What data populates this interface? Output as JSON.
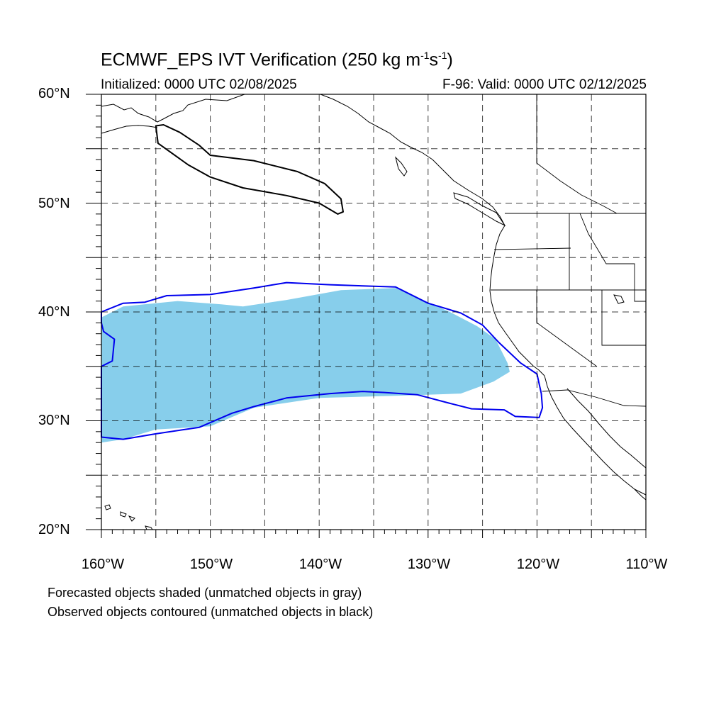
{
  "title": {
    "main": "ECMWF_EPS IVT Verification (250 kg m",
    "exp1": "-1",
    "s": "s",
    "exp2": "-1",
    "close": ")"
  },
  "subtitle": {
    "left": "Initialized: 0000 UTC 02/08/2025",
    "right": "F-96: Valid: 0000 UTC 02/12/2025"
  },
  "axes": {
    "lat_labels": [
      "60°N",
      "50°N",
      "40°N",
      "30°N",
      "20°N"
    ],
    "lon_labels": [
      "160°W",
      "150°W",
      "140°W",
      "130°W",
      "120°W",
      "110°W"
    ],
    "lon_range": [
      -160,
      -110
    ],
    "lat_range": [
      20,
      60
    ]
  },
  "notes": [
    "Forecasted objects shaded (unmatched objects in gray)",
    "Observed objects contoured (unmatched objects in black)"
  ],
  "colors": {
    "forecast_fill": "#87ceeb",
    "matched_contour": "#0000ee",
    "unmatched_contour": "#000000",
    "grid": "#000000",
    "coast": "#000000"
  },
  "map": {
    "projection": "cylindrical equidistant",
    "grid": "dashed every 5 degrees",
    "objects": [
      {
        "kind": "forecast-shaded",
        "label": "forecast-object",
        "lonlat": [
          [
            -160,
            39.5
          ],
          [
            -158,
            40.5
          ],
          [
            -153,
            41
          ],
          [
            -149,
            40.7
          ],
          [
            -147,
            40.5
          ],
          [
            -143,
            41.1
          ],
          [
            -138,
            42
          ],
          [
            -133,
            42.2
          ],
          [
            -128,
            40
          ],
          [
            -125.5,
            38.7
          ],
          [
            -123.8,
            37.5
          ],
          [
            -122.7,
            35.3
          ],
          [
            -122.5,
            34.5
          ],
          [
            -124,
            33.6
          ],
          [
            -127,
            32.5
          ],
          [
            -133,
            32.3
          ],
          [
            -140,
            32.1
          ],
          [
            -146,
            31.2
          ],
          [
            -150,
            29.5
          ],
          [
            -155,
            29.2
          ],
          [
            -158,
            28.3
          ],
          [
            -160,
            28
          ]
        ]
      },
      {
        "kind": "observed-contour-matched",
        "label": "observed-object-matched",
        "lonlat": [
          [
            -160,
            40
          ],
          [
            -158,
            40.8
          ],
          [
            -156,
            40.9
          ],
          [
            -154,
            41.5
          ],
          [
            -150,
            41.6
          ],
          [
            -146,
            42.2
          ],
          [
            -143,
            42.7
          ],
          [
            -139,
            42.5
          ],
          [
            -136,
            42.4
          ],
          [
            -133,
            42.3
          ],
          [
            -130,
            40.8
          ],
          [
            -127,
            39.9
          ],
          [
            -125,
            38.8
          ],
          [
            -123.5,
            37.2
          ],
          [
            -121.5,
            35.3
          ],
          [
            -120,
            34.3
          ],
          [
            -119.6,
            32.5
          ],
          [
            -119.5,
            31.2
          ],
          [
            -119.8,
            30.3
          ],
          [
            -122,
            30.4
          ],
          [
            -123,
            31
          ],
          [
            -126,
            31.1
          ],
          [
            -128,
            31.6
          ],
          [
            -131,
            32.4
          ],
          [
            -134,
            32.6
          ],
          [
            -136,
            32.7
          ],
          [
            -139,
            32.5
          ],
          [
            -143,
            32.1
          ],
          [
            -146,
            31.3
          ],
          [
            -148,
            30.7
          ],
          [
            -151,
            29.4
          ],
          [
            -155,
            28.8
          ],
          [
            -158,
            28.3
          ],
          [
            -160,
            28.5
          ],
          [
            -160,
            35
          ],
          [
            -159,
            35.5
          ],
          [
            -158.8,
            37.5
          ],
          [
            -159.8,
            38.2
          ],
          [
            -160,
            39
          ]
        ]
      },
      {
        "kind": "observed-contour-unmatched",
        "label": "observed-object-unmatched",
        "lonlat": [
          [
            -154.3,
            57.2
          ],
          [
            -152.8,
            56.5
          ],
          [
            -151,
            55.3
          ],
          [
            -150,
            54.4
          ],
          [
            -146,
            53.9
          ],
          [
            -142,
            52.9
          ],
          [
            -139.5,
            51.8
          ],
          [
            -138,
            50.4
          ],
          [
            -137.8,
            49.2
          ],
          [
            -138.3,
            49
          ],
          [
            -140,
            50
          ],
          [
            -143,
            50.7
          ],
          [
            -147,
            51.4
          ],
          [
            -150,
            52.4
          ],
          [
            -152,
            53.5
          ],
          [
            -154.8,
            55.5
          ],
          [
            -155,
            57.1
          ]
        ]
      }
    ],
    "coastlines": "North Pacific / western North America, Hawaiian Islands"
  }
}
